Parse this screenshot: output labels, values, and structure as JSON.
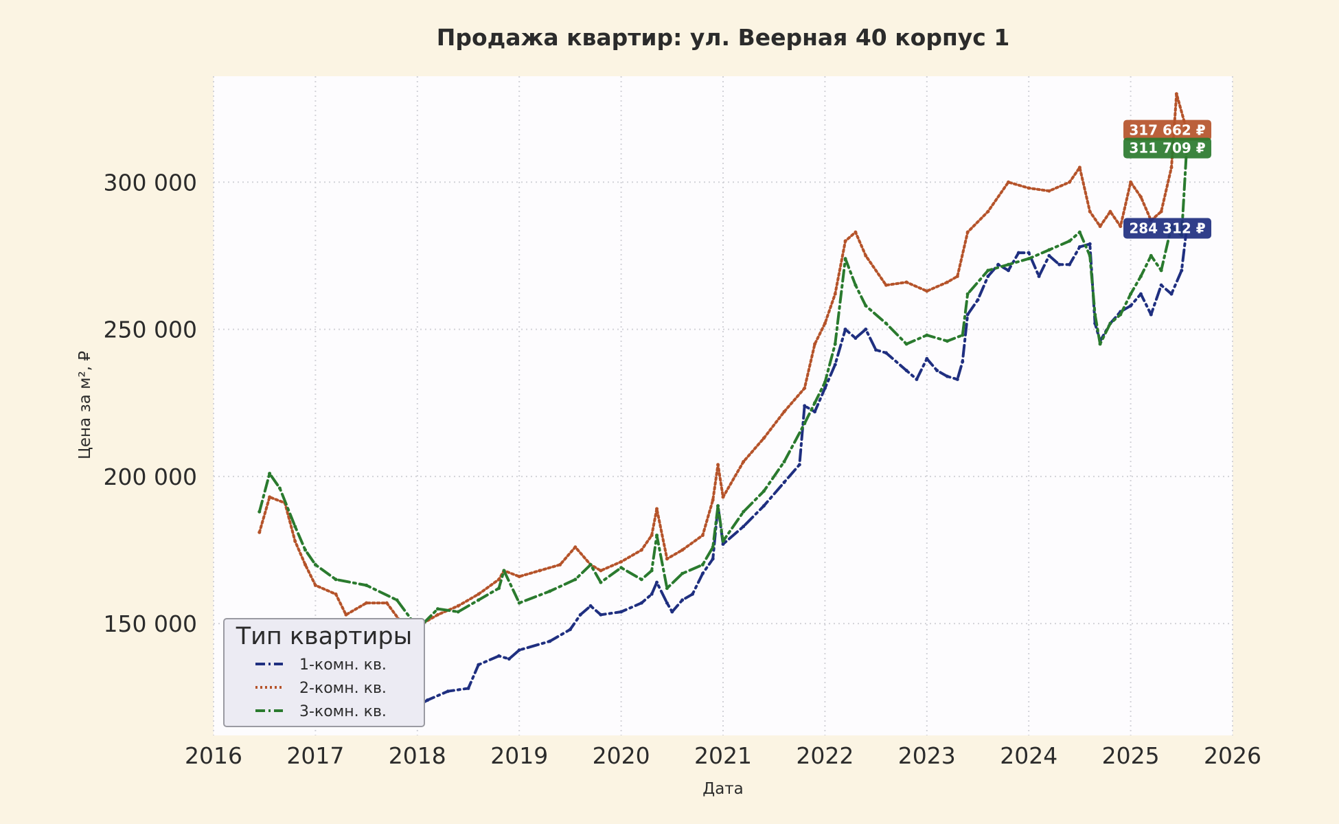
{
  "chart_data": {
    "type": "line",
    "title": "Продажа квартир: ул. Веерная 40 корпус 1",
    "xlabel": "Дата",
    "ylabel": "Цена за м², ₽",
    "xlim": [
      2016.0,
      2026.0
    ],
    "ylim": [
      112000,
      336000
    ],
    "x_ticks": [
      2016,
      2017,
      2018,
      2019,
      2020,
      2021,
      2022,
      2023,
      2024,
      2025,
      2026
    ],
    "x_tick_labels": [
      "2016",
      "2017",
      "2018",
      "2019",
      "2020",
      "2021",
      "2022",
      "2023",
      "2024",
      "2025",
      "2026"
    ],
    "y_ticks": [
      150000,
      200000,
      250000,
      300000
    ],
    "y_tick_labels": [
      "150 000",
      "200 000",
      "250 000",
      "300 000"
    ],
    "grid": true,
    "legend": {
      "title": "Тип квартиры",
      "placement": "lower-left"
    },
    "series": [
      {
        "name": "1-комн. кв.",
        "color": "#1f2f80",
        "style": "dashdot",
        "end_label": "284 312 ₽",
        "end_value": 284312,
        "x": [
          2016.55,
          2016.8,
          2017.2,
          2017.5,
          2017.8,
          2018.0,
          2018.1,
          2018.3,
          2018.5,
          2018.6,
          2018.8,
          2018.9,
          2019.0,
          2019.3,
          2019.5,
          2019.6,
          2019.7,
          2019.8,
          2020.0,
          2020.2,
          2020.3,
          2020.35,
          2020.45,
          2020.5,
          2020.6,
          2020.7,
          2020.8,
          2020.9,
          2020.95,
          2021.0,
          2021.2,
          2021.4,
          2021.6,
          2021.75,
          2021.8,
          2021.9,
          2022.0,
          2022.1,
          2022.2,
          2022.3,
          2022.4,
          2022.5,
          2022.6,
          2022.8,
          2022.9,
          2023.0,
          2023.1,
          2023.2,
          2023.3,
          2023.35,
          2023.4,
          2023.5,
          2023.6,
          2023.7,
          2023.8,
          2023.9,
          2024.0,
          2024.1,
          2024.2,
          2024.3,
          2024.4,
          2024.5,
          2024.6,
          2024.65,
          2024.7,
          2024.8,
          2024.9,
          2025.0,
          2025.1,
          2025.2,
          2025.3,
          2025.4,
          2025.5,
          2025.55
        ],
        "y": [
          141000,
          139000,
          132000,
          130000,
          129000,
          122000,
          124000,
          127000,
          128000,
          136000,
          139000,
          138000,
          141000,
          144000,
          148000,
          153000,
          156000,
          153000,
          154000,
          157000,
          160000,
          164000,
          157000,
          154000,
          158000,
          160000,
          167000,
          172000,
          190000,
          177000,
          183000,
          190000,
          198000,
          204000,
          224000,
          222000,
          230000,
          238000,
          250000,
          247000,
          250000,
          243000,
          242000,
          236000,
          233000,
          240000,
          236000,
          234000,
          233000,
          239000,
          255000,
          260000,
          268000,
          272000,
          270000,
          276000,
          276000,
          268000,
          275000,
          272000,
          272000,
          278000,
          279000,
          252000,
          246000,
          252000,
          256000,
          258000,
          262000,
          255000,
          265000,
          262000,
          270000,
          284312
        ]
      },
      {
        "name": "2-комн. кв.",
        "color": "#b5532a",
        "style": "dotted",
        "end_label": "317 662 ₽",
        "end_value": 317662,
        "x": [
          2016.45,
          2016.55,
          2016.7,
          2016.8,
          2016.9,
          2017.0,
          2017.2,
          2017.3,
          2017.5,
          2017.7,
          2017.85,
          2018.0,
          2018.2,
          2018.4,
          2018.6,
          2018.8,
          2018.85,
          2019.0,
          2019.2,
          2019.4,
          2019.55,
          2019.7,
          2019.8,
          2020.0,
          2020.2,
          2020.3,
          2020.35,
          2020.45,
          2020.6,
          2020.8,
          2020.9,
          2020.95,
          2021.0,
          2021.2,
          2021.4,
          2021.6,
          2021.8,
          2021.9,
          2022.0,
          2022.1,
          2022.2,
          2022.3,
          2022.4,
          2022.6,
          2022.8,
          2023.0,
          2023.2,
          2023.3,
          2023.4,
          2023.6,
          2023.8,
          2024.0,
          2024.2,
          2024.4,
          2024.5,
          2024.6,
          2024.7,
          2024.8,
          2024.9,
          2025.0,
          2025.1,
          2025.2,
          2025.3,
          2025.4,
          2025.45,
          2025.55
        ],
        "y": [
          181000,
          193000,
          191000,
          178000,
          170000,
          163000,
          160000,
          153000,
          157000,
          157000,
          150000,
          149000,
          153000,
          156000,
          160000,
          165000,
          168000,
          166000,
          168000,
          170000,
          176000,
          170000,
          168000,
          171000,
          175000,
          180000,
          189000,
          172000,
          175000,
          180000,
          192000,
          204000,
          193000,
          205000,
          213000,
          222000,
          230000,
          245000,
          252000,
          262000,
          280000,
          283000,
          275000,
          265000,
          266000,
          263000,
          266000,
          268000,
          283000,
          290000,
          300000,
          298000,
          297000,
          300000,
          305000,
          290000,
          285000,
          290000,
          285000,
          300000,
          295000,
          287000,
          290000,
          305000,
          330000,
          317662
        ]
      },
      {
        "name": "3-комн. кв.",
        "color": "#2a7a2e",
        "style": "dashdot",
        "end_label": "311 709 ₽",
        "end_value": 311709,
        "x": [
          2016.45,
          2016.55,
          2016.65,
          2016.8,
          2016.9,
          2017.0,
          2017.2,
          2017.5,
          2017.8,
          2017.95,
          2018.0,
          2018.2,
          2018.4,
          2018.6,
          2018.8,
          2018.85,
          2019.0,
          2019.3,
          2019.55,
          2019.7,
          2019.8,
          2020.0,
          2020.2,
          2020.3,
          2020.35,
          2020.45,
          2020.6,
          2020.8,
          2020.9,
          2020.95,
          2021.0,
          2021.2,
          2021.4,
          2021.6,
          2021.8,
          2021.9,
          2022.0,
          2022.1,
          2022.2,
          2022.3,
          2022.4,
          2022.6,
          2022.8,
          2023.0,
          2023.2,
          2023.35,
          2023.4,
          2023.6,
          2023.8,
          2024.0,
          2024.2,
          2024.4,
          2024.5,
          2024.6,
          2024.65,
          2024.7,
          2024.8,
          2024.9,
          2025.0,
          2025.1,
          2025.2,
          2025.3,
          2025.4,
          2025.5,
          2025.55
        ],
        "y": [
          188000,
          201000,
          196000,
          183000,
          175000,
          170000,
          165000,
          163000,
          158000,
          151000,
          148000,
          155000,
          154000,
          158000,
          162000,
          168000,
          157000,
          161000,
          165000,
          170000,
          164000,
          169000,
          165000,
          168000,
          180000,
          162000,
          167000,
          170000,
          176000,
          190000,
          178000,
          188000,
          195000,
          205000,
          218000,
          225000,
          232000,
          245000,
          274000,
          265000,
          258000,
          252000,
          245000,
          248000,
          246000,
          248000,
          262000,
          270000,
          272000,
          274000,
          277000,
          280000,
          283000,
          275000,
          255000,
          245000,
          252000,
          255000,
          262000,
          268000,
          275000,
          270000,
          285000,
          282000,
          311709
        ]
      }
    ]
  }
}
